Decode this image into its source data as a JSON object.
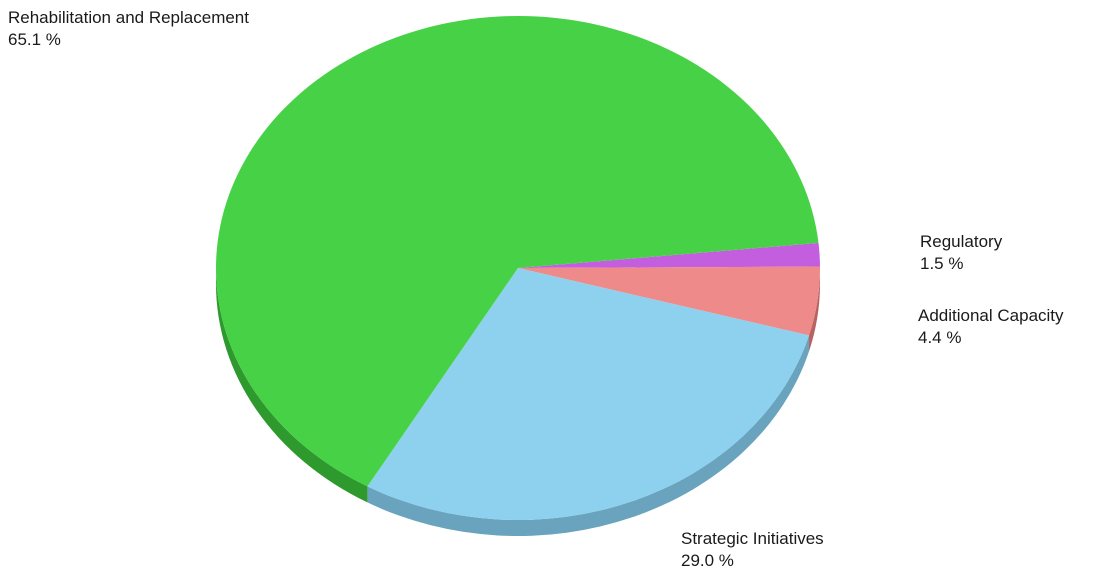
{
  "chart_data": {
    "type": "pie",
    "title": "",
    "slices": [
      {
        "label": "Rehabilitation and Replacement",
        "value": 65.1,
        "value_text": "65.1 %",
        "color": "#47d147",
        "side_color": "#2e9a2e"
      },
      {
        "label": "Strategic Initiatives",
        "value": 29.0,
        "value_text": "29.0 %",
        "color": "#8dd1ee",
        "side_color": "#6aa3bd"
      },
      {
        "label": "Additional Capacity",
        "value": 4.4,
        "value_text": "4.4 %",
        "color": "#ef8a8a",
        "side_color": "#b86262"
      },
      {
        "label": "Regulatory",
        "value": 1.5,
        "value_text": "1.5 %",
        "color": "#c35fdf",
        "side_color": "#8e44a5"
      }
    ]
  }
}
